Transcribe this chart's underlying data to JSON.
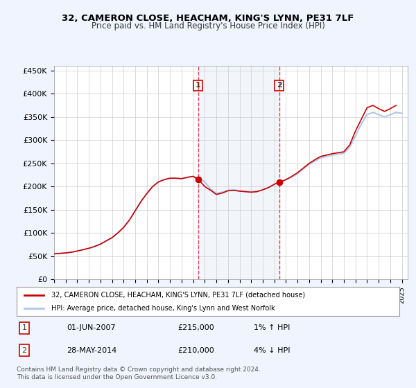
{
  "title": "32, CAMERON CLOSE, HEACHAM, KING'S LYNN, PE31 7LF",
  "subtitle": "Price paid vs. HM Land Registry's House Price Index (HPI)",
  "footer": "Contains HM Land Registry data © Crown copyright and database right 2024.\nThis data is licensed under the Open Government Licence v3.0.",
  "legend_line1": "32, CAMERON CLOSE, HEACHAM, KING'S LYNN, PE31 7LF (detached house)",
  "legend_line2": "HPI: Average price, detached house, King's Lynn and West Norfolk",
  "annotation1_label": "1",
  "annotation1_date": "01-JUN-2007",
  "annotation1_price": "£215,000",
  "annotation1_hpi": "1% ↑ HPI",
  "annotation2_label": "2",
  "annotation2_date": "28-MAY-2014",
  "annotation2_price": "£210,000",
  "annotation2_hpi": "4% ↓ HPI",
  "xmin": 1995.0,
  "xmax": 2025.5,
  "ymin": 0,
  "ymax": 460000,
  "yticks": [
    0,
    50000,
    100000,
    150000,
    200000,
    250000,
    300000,
    350000,
    400000,
    450000
  ],
  "ytick_labels": [
    "£0",
    "£50K",
    "£100K",
    "£150K",
    "£200K",
    "£250K",
    "£300K",
    "£350K",
    "£400K",
    "£450K"
  ],
  "bg_color": "#f0f4ff",
  "plot_bg": "#ffffff",
  "grid_color": "#cccccc",
  "hpi_line_color": "#aec6e8",
  "sale_line_color": "#cc0000",
  "sale_dot_color": "#cc0000",
  "annotation_dot_color": "#cc0000",
  "vline_color": "#cc0000",
  "sale1_x": 2007.42,
  "sale1_y": 215000,
  "sale2_x": 2014.41,
  "sale2_y": 210000,
  "shade_x1": 2007.42,
  "shade_x2": 2014.41
}
